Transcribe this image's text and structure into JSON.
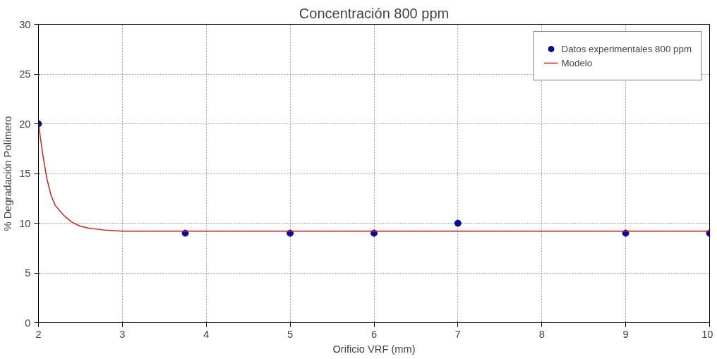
{
  "chart_data": {
    "type": "scatter",
    "title": "Concentración 800 ppm",
    "xlabel": "Orificio VRF (mm)",
    "ylabel": "% Degradación Polímero",
    "xlim": [
      2,
      10
    ],
    "ylim": [
      0,
      30
    ],
    "xticks": [
      2,
      3,
      4,
      5,
      6,
      7,
      8,
      9,
      10
    ],
    "yticks": [
      0,
      5,
      10,
      15,
      20,
      25,
      30
    ],
    "grid": true,
    "legend": "top right",
    "series": [
      {
        "name": "Datos experimentales 800 ppm",
        "marker": "circle",
        "color": "#0a0a96",
        "x": [
          2,
          3.75,
          5,
          6,
          7,
          9,
          10
        ],
        "values": [
          20,
          9,
          9,
          9,
          10,
          9,
          9
        ]
      },
      {
        "name": "Modelo",
        "type": "line",
        "line_style": "solid",
        "color": "#d02020",
        "x": [
          2,
          2.05,
          2.1,
          2.15,
          2.2,
          2.3,
          2.4,
          2.5,
          2.6,
          2.8,
          3,
          4,
          6,
          8,
          10
        ],
        "values": [
          20,
          17,
          14.5,
          12.8,
          11.8,
          10.8,
          10.1,
          9.7,
          9.5,
          9.3,
          9.2,
          9.2,
          9.2,
          9.2,
          9.2
        ]
      }
    ]
  }
}
